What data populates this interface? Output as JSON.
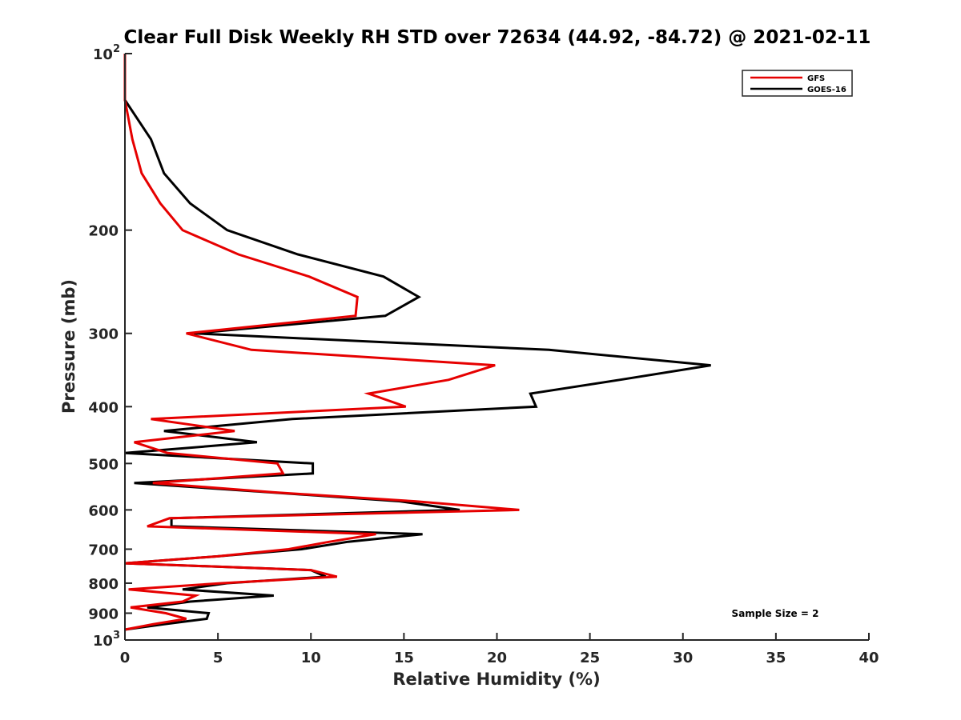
{
  "chart_data": {
    "type": "line",
    "title": "Clear Full Disk Weekly RH STD over 72634 (44.92, -84.72) @ 2021-02-11",
    "xlabel": "Relative Humidity (%)",
    "ylabel": "Pressure (mb)",
    "xlim": [
      0,
      40
    ],
    "ylim": [
      1000,
      100
    ],
    "yscale": "log",
    "y_reversed": true,
    "grid": false,
    "legend_position": "top-right",
    "x_ticks": [
      0,
      5,
      10,
      15,
      20,
      25,
      30,
      35,
      40
    ],
    "x_tick_labels": [
      "0",
      "5",
      "10",
      "15",
      "20",
      "25",
      "30",
      "35",
      "40"
    ],
    "y_ticks": [
      100,
      200,
      300,
      400,
      500,
      600,
      700,
      800,
      900,
      1000
    ],
    "y_tick_labels": [
      {
        "base": "10",
        "sup": "2"
      },
      {
        "base": "200",
        "sup": ""
      },
      {
        "base": "300",
        "sup": ""
      },
      {
        "base": "400",
        "sup": ""
      },
      {
        "base": "500",
        "sup": ""
      },
      {
        "base": "600",
        "sup": ""
      },
      {
        "base": "700",
        "sup": ""
      },
      {
        "base": "800",
        "sup": ""
      },
      {
        "base": "900",
        "sup": ""
      },
      {
        "base": "10",
        "sup": "3"
      }
    ],
    "pressure_levels": [
      100,
      120,
      140,
      160,
      180,
      200,
      220,
      240,
      260,
      280,
      300,
      320,
      340,
      360,
      380,
      400,
      420,
      440,
      460,
      480,
      500,
      520,
      540,
      560,
      580,
      600,
      620,
      640,
      660,
      680,
      700,
      720,
      740,
      760,
      780,
      800,
      820,
      840,
      860,
      880,
      900,
      920,
      940,
      960
    ],
    "series": [
      {
        "name": "GFS",
        "color": "#e60000",
        "values": [
          0,
          0,
          0.4,
          0.9,
          1.9,
          3.1,
          6.1,
          9.9,
          12.5,
          12.4,
          3.3,
          6.8,
          19.9,
          17.4,
          13.1,
          15.1,
          1.4,
          5.9,
          0.5,
          2.3,
          8.2,
          8.5,
          1.5,
          8.0,
          15.6,
          21.2,
          2.4,
          1.2,
          13.5,
          11.0,
          8.8,
          5.0,
          0,
          10.0,
          11.4,
          5.2,
          0.2,
          3.8,
          3.1,
          0.3,
          2.2,
          3.3,
          1.5,
          0
        ]
      },
      {
        "name": "GOES-16",
        "color": "#000000",
        "values": [
          0,
          0,
          1.4,
          2.1,
          3.5,
          5.5,
          9.3,
          13.9,
          15.8,
          14.0,
          3.7,
          22.8,
          31.5,
          26.6,
          21.8,
          22.1,
          9.0,
          2.1,
          7.1,
          0.0,
          10.1,
          10.1,
          0.5,
          7.8,
          14.8,
          18.0,
          2.5,
          2.5,
          16.0,
          12.0,
          9.5,
          5.0,
          0,
          10.0,
          10.8,
          5.5,
          3.1,
          8.0,
          3.5,
          1.2,
          4.5,
          4.4,
          2.1,
          0
        ]
      }
    ],
    "annotations": [
      "Sample Size = 2"
    ]
  }
}
